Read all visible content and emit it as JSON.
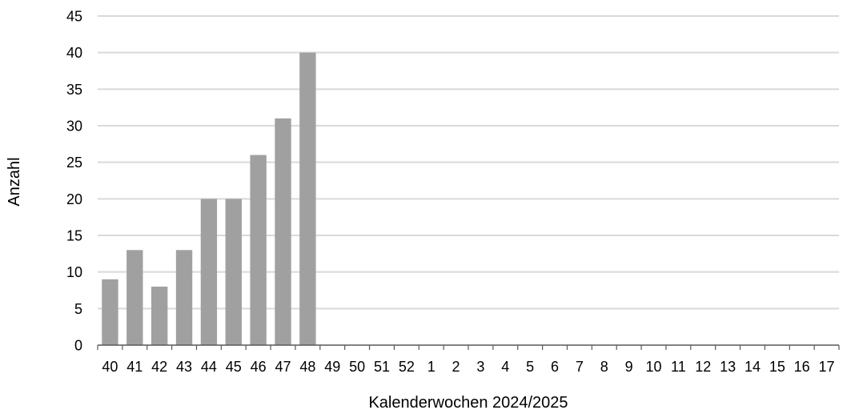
{
  "chart_data": {
    "type": "bar",
    "title": "",
    "xlabel": "Kalenderwochen 2024/2025",
    "ylabel": "Anzahl",
    "ylim": [
      0,
      45
    ],
    "yticks": [
      0,
      5,
      10,
      15,
      20,
      25,
      30,
      35,
      40,
      45
    ],
    "grid": true,
    "categories": [
      "40",
      "41",
      "42",
      "43",
      "44",
      "45",
      "46",
      "47",
      "48",
      "49",
      "50",
      "51",
      "52",
      "1",
      "2",
      "3",
      "4",
      "5",
      "6",
      "7",
      "8",
      "9",
      "10",
      "11",
      "12",
      "13",
      "14",
      "15",
      "16",
      "17"
    ],
    "values": [
      9,
      13,
      8,
      13,
      20,
      20,
      26,
      31,
      40,
      null,
      null,
      null,
      null,
      null,
      null,
      null,
      null,
      null,
      null,
      null,
      null,
      null,
      null,
      null,
      null,
      null,
      null,
      null,
      null,
      null
    ],
    "colors": {
      "bar": "#a0a0a0",
      "grid": "#d9d9d9",
      "axis": "#595959"
    }
  }
}
